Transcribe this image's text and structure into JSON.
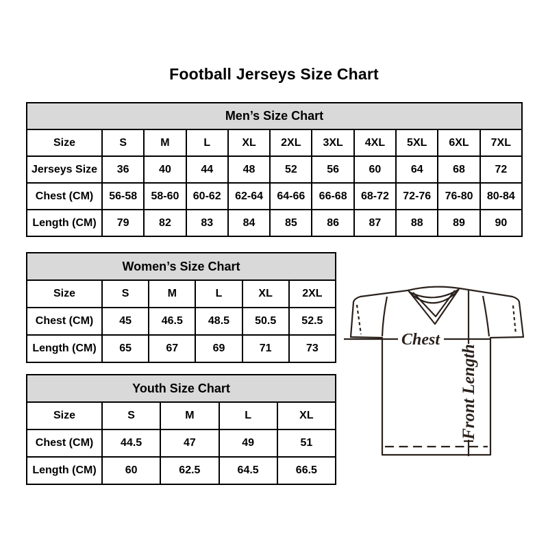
{
  "page": {
    "title": "Football Jerseys Size Chart"
  },
  "tables": {
    "mens": {
      "title": "Men’s Size Chart",
      "rows": [
        [
          "Size",
          "S",
          "M",
          "L",
          "XL",
          "2XL",
          "3XL",
          "4XL",
          "5XL",
          "6XL",
          "7XL"
        ],
        [
          "Jerseys Size",
          "36",
          "40",
          "44",
          "48",
          "52",
          "56",
          "60",
          "64",
          "68",
          "72"
        ],
        [
          "Chest (CM)",
          "56-58",
          "58-60",
          "60-62",
          "62-64",
          "64-66",
          "66-68",
          "68-72",
          "72-76",
          "76-80",
          "80-84"
        ],
        [
          "Length (CM)",
          "79",
          "82",
          "83",
          "84",
          "85",
          "86",
          "87",
          "88",
          "89",
          "90"
        ]
      ]
    },
    "womens": {
      "title": "Women’s Size Chart",
      "rows": [
        [
          "Size",
          "S",
          "M",
          "L",
          "XL",
          "2XL"
        ],
        [
          "Chest (CM)",
          "45",
          "46.5",
          "48.5",
          "50.5",
          "52.5"
        ],
        [
          "Length (CM)",
          "65",
          "67",
          "69",
          "71",
          "73"
        ]
      ]
    },
    "youth": {
      "title": "Youth Size Chart",
      "rows": [
        [
          "Size",
          "S",
          "M",
          "L",
          "XL"
        ],
        [
          "Chest (CM)",
          "44.5",
          "47",
          "49",
          "51"
        ],
        [
          "Length (CM)",
          "60",
          "62.5",
          "64.5",
          "66.5"
        ]
      ]
    }
  },
  "jersey_diagram": {
    "chest_label": "Chest",
    "front_length_label": "Front Length"
  },
  "colors": {
    "background": "#ffffff",
    "table_header_bg": "#d9d9d9",
    "table_border": "#000000",
    "text": "#000000",
    "jersey_line": "#2b211c"
  }
}
